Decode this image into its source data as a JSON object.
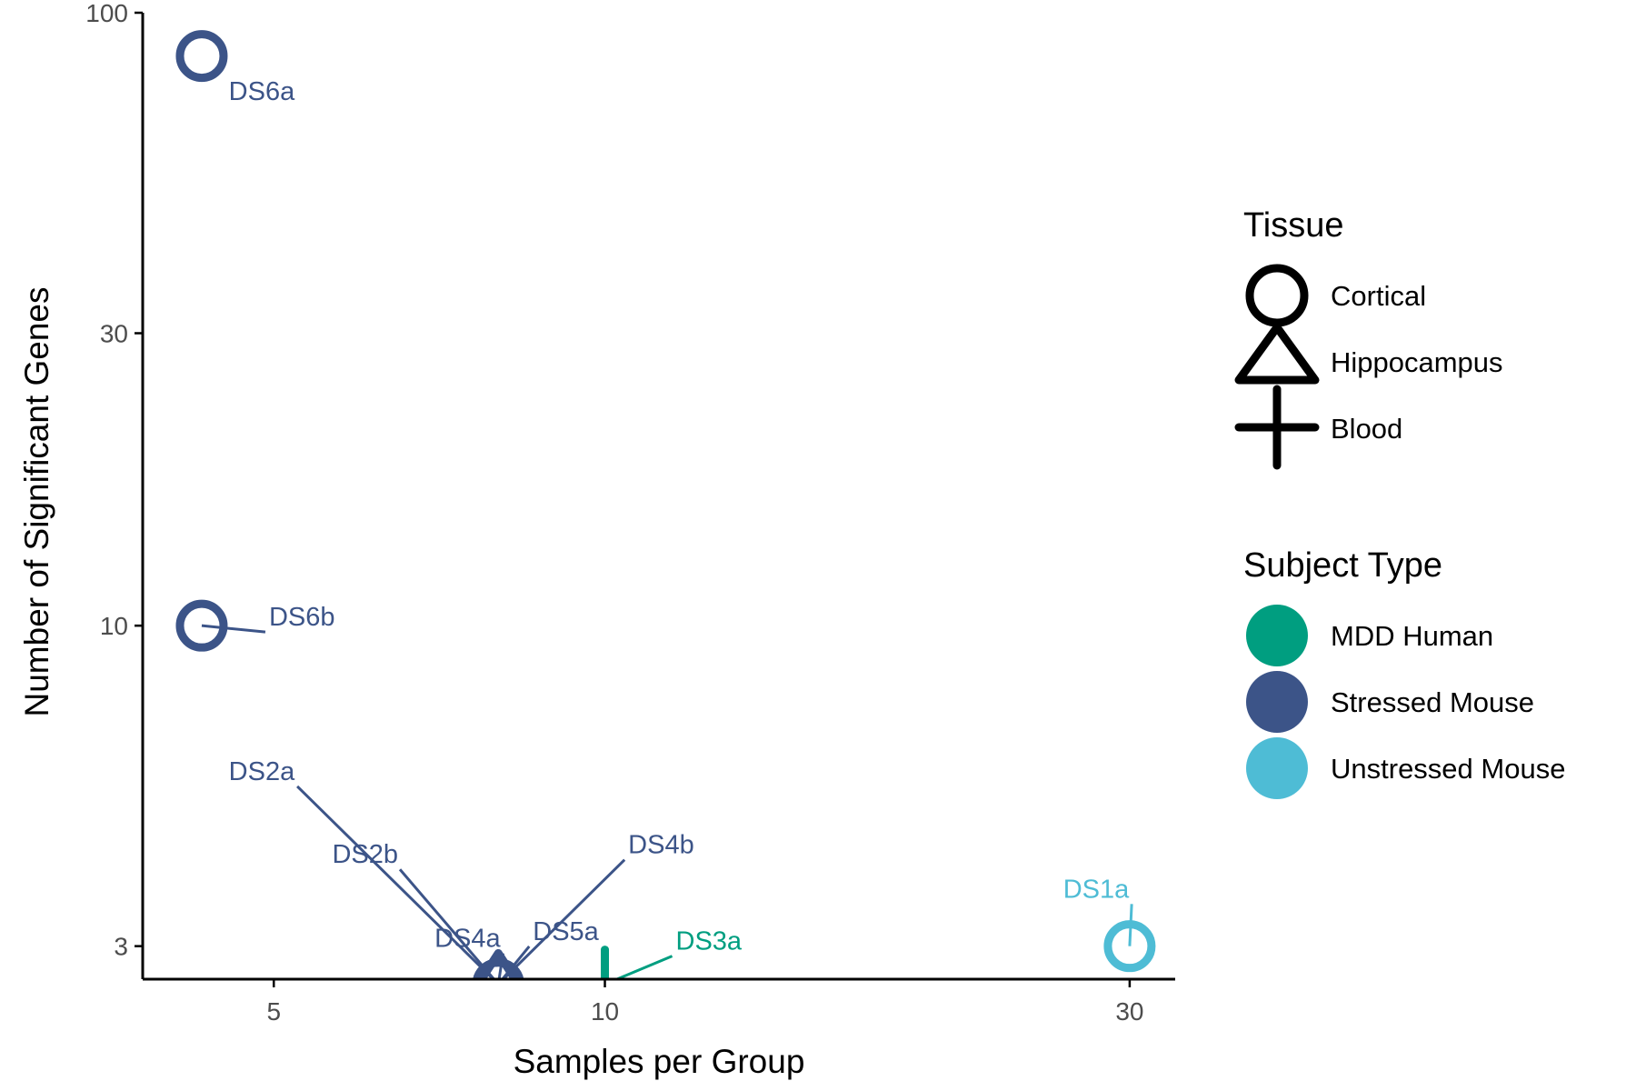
{
  "chart_data": {
    "type": "scatter",
    "xlabel": "Samples per Group",
    "ylabel": "Number of Significant Genes",
    "x_scale": "log",
    "y_scale": "log",
    "xlim": [
      3.8,
      33
    ],
    "ylim": [
      2.65,
      100
    ],
    "x_ticks": [
      {
        "value": 5,
        "label": "5"
      },
      {
        "value": 10,
        "label": "10"
      },
      {
        "value": 30,
        "label": "30"
      }
    ],
    "y_ticks": [
      {
        "value": 3,
        "label": "3"
      },
      {
        "value": 10,
        "label": "10"
      },
      {
        "value": 30,
        "label": "30"
      },
      {
        "value": 100,
        "label": "100"
      }
    ],
    "grid": false,
    "legend_position": "right",
    "points": [
      {
        "label": "DS6a",
        "x": 4.3,
        "y": 85,
        "tissue": "Cortical",
        "subject": "Stressed Mouse",
        "label_x": 4.55,
        "label_y": 72
      },
      {
        "label": "DS6b",
        "x": 4.3,
        "y": 10,
        "tissue": "Cortical",
        "subject": "Stressed Mouse",
        "label_x": 4.95,
        "label_y": 10
      },
      {
        "label": "DS2a",
        "x": 8,
        "y": 2.6,
        "tissue": "Cortical",
        "subject": "Stressed Mouse",
        "label_x": 4.55,
        "label_y": 5.6
      },
      {
        "label": "DS2b",
        "x": 8,
        "y": 2.6,
        "tissue": "Cortical",
        "subject": "Stressed Mouse",
        "label_x": 5.65,
        "label_y": 4.1
      },
      {
        "label": "DS4a",
        "x": 8,
        "y": 2.6,
        "tissue": "Hippocampus",
        "subject": "Stressed Mouse",
        "label_x": 7.0,
        "label_y": 2.99
      },
      {
        "label": "DS5a",
        "x": 8,
        "y": 2.6,
        "tissue": "Hippocampus",
        "subject": "Stressed Mouse",
        "label_x": 8.6,
        "label_y": 3.07
      },
      {
        "label": "DS4b",
        "x": 8,
        "y": 2.6,
        "tissue": "Cortical",
        "subject": "Stressed Mouse",
        "label_x": 10.5,
        "label_y": 4.25
      },
      {
        "label": "DS3a",
        "x": 10,
        "y": 2.6,
        "tissue": "Blood",
        "subject": "MDD Human",
        "label_x": 11.6,
        "label_y": 2.96
      },
      {
        "label": "DS1a",
        "x": 30,
        "y": 3,
        "tissue": "Cortical",
        "subject": "Unstressed Mouse",
        "label_x": 26.1,
        "label_y": 3.6
      }
    ],
    "legend": {
      "tissue": {
        "title": "Tissue",
        "entries": [
          {
            "label": "Cortical",
            "shape": "circle"
          },
          {
            "label": "Hippocampus",
            "shape": "triangle"
          },
          {
            "label": "Blood",
            "shape": "cross"
          }
        ]
      },
      "subject": {
        "title": "Subject Type",
        "entries": [
          {
            "label": "MDD Human",
            "color": "#009E80"
          },
          {
            "label": "Stressed Mouse",
            "color": "#3C5488"
          },
          {
            "label": "Unstressed Mouse",
            "color": "#4EBCD5"
          }
        ]
      }
    }
  }
}
